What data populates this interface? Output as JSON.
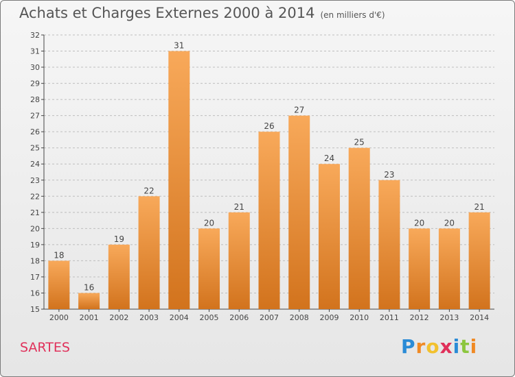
{
  "title": "Achats et Charges Externes 2000 à 2014",
  "subtitle": "(en milliers d'€)",
  "commune": "SARTES",
  "logo": {
    "letters": [
      "P",
      "r",
      "o",
      "x",
      "i",
      "t",
      "i"
    ],
    "colors": [
      "#2a8bd6",
      "#f08a24",
      "#f2c12e",
      "#e0305a",
      "#2a8bd6",
      "#8cc63f",
      "#f08a24"
    ]
  },
  "colors": {
    "bar_top": "#f8a95a",
    "bar_bottom": "#d2731d",
    "grid": "#bdbdbd",
    "axis": "#444444"
  },
  "chart_data": {
    "type": "bar",
    "categories": [
      "2000",
      "2001",
      "2002",
      "2003",
      "2004",
      "2005",
      "2006",
      "2007",
      "2008",
      "2009",
      "2010",
      "2011",
      "2012",
      "2013",
      "2014"
    ],
    "values": [
      18,
      16,
      19,
      22,
      31,
      20,
      21,
      26,
      27,
      24,
      25,
      23,
      20,
      20,
      21
    ],
    "ylim": [
      15,
      32
    ],
    "yticks": [
      15,
      16,
      17,
      18,
      19,
      20,
      21,
      22,
      23,
      24,
      25,
      26,
      27,
      28,
      29,
      30,
      31,
      32
    ],
    "xlabel": "",
    "ylabel": "",
    "grid": true,
    "data_labels": true
  }
}
